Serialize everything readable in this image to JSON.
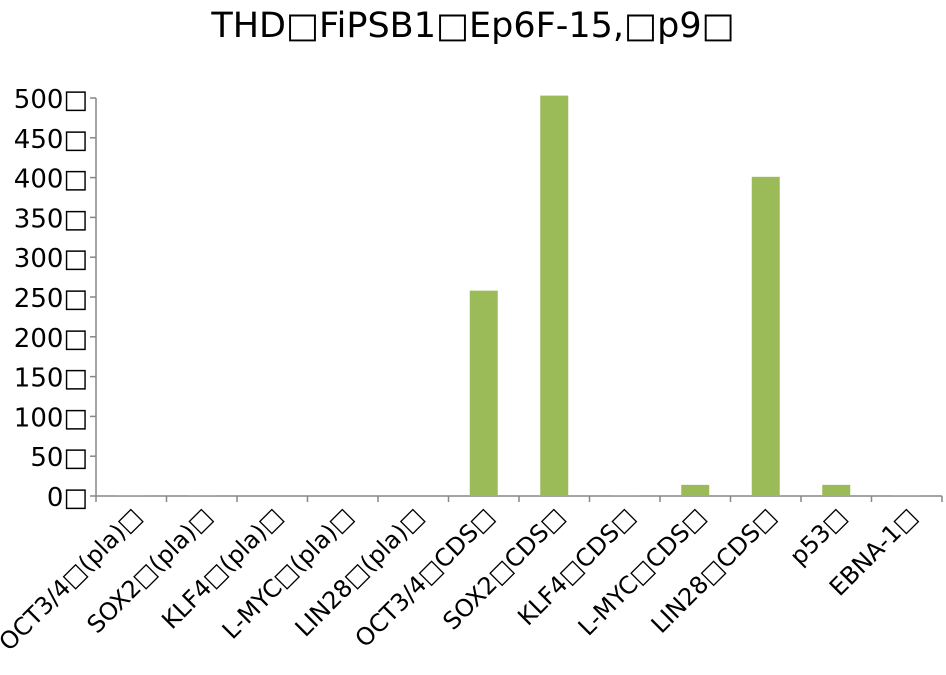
{
  "chart_data": {
    "type": "bar",
    "title": "THD□FiPSB1□Ep6F-15,□p9□",
    "xlabel": "",
    "ylabel": "",
    "ylim": [
      0,
      500
    ],
    "y_ticks": [
      0,
      50,
      100,
      150,
      200,
      250,
      300,
      350,
      400,
      450,
      500
    ],
    "y_tick_labels": [
      "0□",
      "50□",
      "100□",
      "150□",
      "200□",
      "250□",
      "300□",
      "350□",
      "400□",
      "450□",
      "500□"
    ],
    "categories": [
      "OCT3/4□(pla)□",
      "SOX2□(pla)□",
      "KLF4□(pla)□",
      "L-MYC□(pla)□",
      "LIN28□(pla)□",
      "OCT3/4□CDS□",
      "SOX2□CDS□",
      "KLF4□CDS□",
      "L-MYC□CDS□",
      "LIN28□CDS□",
      "p53□",
      "EBNA-1□"
    ],
    "values": [
      1,
      1,
      0,
      0,
      0,
      258,
      503,
      1,
      14,
      401,
      14,
      1
    ],
    "bar_color": "#9bbb59",
    "grid": false,
    "legend": false
  }
}
